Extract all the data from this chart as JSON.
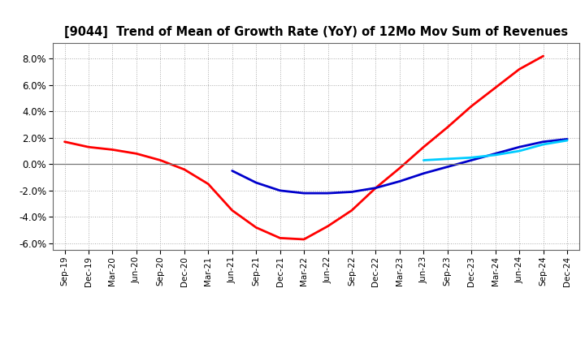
{
  "title": "[9044]  Trend of Mean of Growth Rate (YoY) of 12Mo Mov Sum of Revenues",
  "ylim": [
    -0.065,
    0.092
  ],
  "yticks": [
    -0.06,
    -0.04,
    -0.02,
    0.0,
    0.02,
    0.04,
    0.06,
    0.08
  ],
  "background_color": "#ffffff",
  "grid_color": "#aaaaaa",
  "colors": {
    "3yr": "#ff0000",
    "5yr": "#0000cc",
    "7yr": "#00ccff",
    "10yr": "#008800"
  },
  "x_labels": [
    "Sep-19",
    "Dec-19",
    "Mar-20",
    "Jun-20",
    "Sep-20",
    "Dec-20",
    "Mar-21",
    "Jun-21",
    "Sep-21",
    "Dec-21",
    "Mar-22",
    "Jun-22",
    "Sep-22",
    "Dec-22",
    "Mar-23",
    "Jun-23",
    "Sep-23",
    "Dec-23",
    "Mar-24",
    "Jun-24",
    "Sep-24",
    "Dec-24"
  ],
  "series_3yr": [
    0.017,
    0.013,
    0.011,
    0.008,
    0.003,
    -0.004,
    -0.015,
    -0.035,
    -0.048,
    -0.056,
    -0.057,
    -0.047,
    -0.035,
    -0.018,
    -0.003,
    0.013,
    0.028,
    0.044,
    0.058,
    0.072,
    0.082,
    null
  ],
  "series_5yr": [
    null,
    null,
    null,
    null,
    null,
    null,
    null,
    -0.005,
    -0.014,
    -0.02,
    -0.022,
    -0.022,
    -0.021,
    -0.018,
    -0.013,
    -0.007,
    -0.002,
    0.003,
    0.008,
    0.013,
    0.017,
    0.019
  ],
  "series_7yr": [
    null,
    null,
    null,
    null,
    null,
    null,
    null,
    null,
    null,
    null,
    null,
    null,
    null,
    null,
    null,
    0.003,
    0.004,
    0.005,
    0.007,
    0.01,
    0.015,
    0.018
  ],
  "series_10yr": [
    null,
    null,
    null,
    null,
    null,
    null,
    null,
    null,
    null,
    null,
    null,
    null,
    null,
    null,
    null,
    null,
    null,
    null,
    null,
    null,
    null,
    null
  ]
}
